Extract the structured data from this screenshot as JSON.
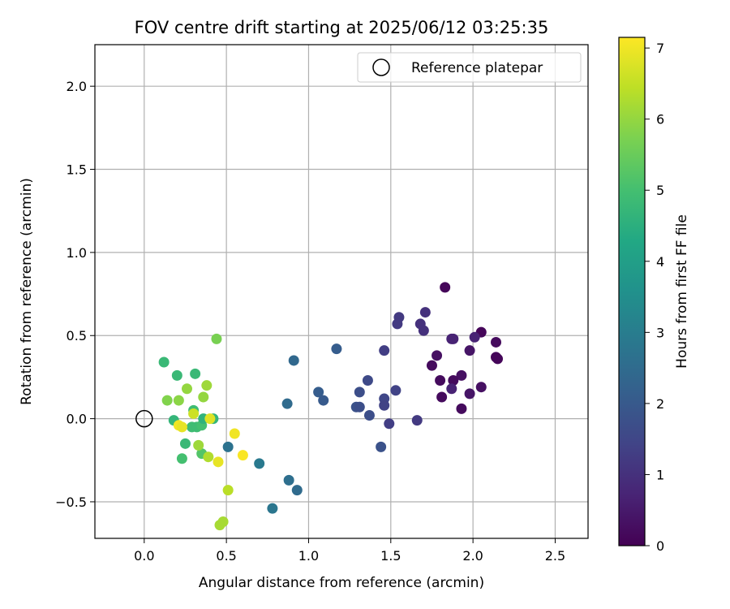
{
  "chart_data": {
    "type": "scatter",
    "title": "FOV centre drift starting at 2025/06/12 03:25:35",
    "xlabel": "Angular distance from reference (arcmin)",
    "ylabel": "Rotation from reference (arcmin)",
    "xlim": [
      -0.3,
      2.7
    ],
    "ylim": [
      -0.72,
      2.25
    ],
    "xticks": [
      0.0,
      0.5,
      1.0,
      1.5,
      2.0,
      2.5
    ],
    "xtick_labels": [
      "0.0",
      "0.5",
      "1.0",
      "1.5",
      "2.0",
      "2.5"
    ],
    "yticks": [
      -0.5,
      0.0,
      0.5,
      1.0,
      1.5,
      2.0
    ],
    "ytick_labels": [
      "−0.5",
      "0.0",
      "0.5",
      "1.0",
      "1.5",
      "2.0"
    ],
    "grid": true,
    "legend": {
      "placement": "top-right",
      "entries": [
        {
          "label": "Reference platepar",
          "marker": "open-circle"
        }
      ]
    },
    "reference_point": {
      "x": 0.0,
      "y": 0.0
    },
    "colorbar": {
      "label": "Hours from first FF file",
      "range": [
        0,
        7.15
      ],
      "ticks": [
        0,
        1,
        2,
        3,
        4,
        5,
        6,
        7
      ],
      "tick_labels": [
        "0",
        "1",
        "2",
        "3",
        "4",
        "5",
        "6",
        "7"
      ],
      "colormap": "viridis"
    },
    "points": [
      {
        "x": 1.83,
        "y": 0.79,
        "c": 0.1
      },
      {
        "x": 2.05,
        "y": 0.52,
        "c": 0.1
      },
      {
        "x": 2.14,
        "y": 0.46,
        "c": 0.2
      },
      {
        "x": 2.14,
        "y": 0.37,
        "c": 0.1
      },
      {
        "x": 2.15,
        "y": 0.36,
        "c": 0.1
      },
      {
        "x": 1.78,
        "y": 0.38,
        "c": 0.3
      },
      {
        "x": 1.75,
        "y": 0.32,
        "c": 0.2
      },
      {
        "x": 1.8,
        "y": 0.23,
        "c": 0.2
      },
      {
        "x": 1.81,
        "y": 0.13,
        "c": 0.2
      },
      {
        "x": 1.98,
        "y": 0.41,
        "c": 0.4
      },
      {
        "x": 1.93,
        "y": 0.26,
        "c": 0.3
      },
      {
        "x": 1.88,
        "y": 0.23,
        "c": 0.2
      },
      {
        "x": 1.98,
        "y": 0.15,
        "c": 0.4
      },
      {
        "x": 2.05,
        "y": 0.19,
        "c": 0.3
      },
      {
        "x": 1.93,
        "y": 0.06,
        "c": 0.2
      },
      {
        "x": 2.01,
        "y": 0.49,
        "c": 0.7
      },
      {
        "x": 1.87,
        "y": 0.48,
        "c": 0.7
      },
      {
        "x": 1.88,
        "y": 0.48,
        "c": 0.7
      },
      {
        "x": 1.87,
        "y": 0.18,
        "c": 0.7
      },
      {
        "x": 1.71,
        "y": 0.64,
        "c": 1.0
      },
      {
        "x": 1.68,
        "y": 0.57,
        "c": 1.0
      },
      {
        "x": 1.7,
        "y": 0.53,
        "c": 1.0
      },
      {
        "x": 1.55,
        "y": 0.61,
        "c": 1.2
      },
      {
        "x": 1.54,
        "y": 0.57,
        "c": 1.2
      },
      {
        "x": 1.46,
        "y": 0.41,
        "c": 1.3
      },
      {
        "x": 1.66,
        "y": -0.01,
        "c": 1.2
      },
      {
        "x": 1.53,
        "y": 0.17,
        "c": 1.4
      },
      {
        "x": 1.46,
        "y": 0.12,
        "c": 1.5
      },
      {
        "x": 1.46,
        "y": 0.08,
        "c": 1.4
      },
      {
        "x": 1.49,
        "y": -0.03,
        "c": 1.3
      },
      {
        "x": 1.36,
        "y": 0.23,
        "c": 1.6
      },
      {
        "x": 1.31,
        "y": 0.16,
        "c": 1.7
      },
      {
        "x": 1.29,
        "y": 0.07,
        "c": 1.8
      },
      {
        "x": 1.31,
        "y": 0.07,
        "c": 1.7
      },
      {
        "x": 1.37,
        "y": 0.02,
        "c": 1.7
      },
      {
        "x": 1.44,
        "y": -0.17,
        "c": 1.8
      },
      {
        "x": 1.17,
        "y": 0.42,
        "c": 2.1
      },
      {
        "x": 1.06,
        "y": 0.16,
        "c": 2.1
      },
      {
        "x": 1.09,
        "y": 0.11,
        "c": 2.0
      },
      {
        "x": 0.91,
        "y": 0.35,
        "c": 2.4
      },
      {
        "x": 0.87,
        "y": 0.09,
        "c": 2.5
      },
      {
        "x": 0.88,
        "y": -0.37,
        "c": 2.6
      },
      {
        "x": 0.93,
        "y": -0.43,
        "c": 2.5
      },
      {
        "x": 0.78,
        "y": -0.54,
        "c": 2.8
      },
      {
        "x": 0.7,
        "y": -0.27,
        "c": 2.9
      },
      {
        "x": 0.51,
        "y": -0.17,
        "c": 2.7
      },
      {
        "x": 0.12,
        "y": 0.34,
        "c": 4.8
      },
      {
        "x": 0.31,
        "y": 0.27,
        "c": 4.8
      },
      {
        "x": 0.2,
        "y": 0.26,
        "c": 4.8
      },
      {
        "x": 0.18,
        "y": -0.01,
        "c": 4.7
      },
      {
        "x": 0.29,
        "y": -0.05,
        "c": 4.9
      },
      {
        "x": 0.32,
        "y": -0.05,
        "c": 4.9
      },
      {
        "x": 0.35,
        "y": -0.04,
        "c": 5.0
      },
      {
        "x": 0.42,
        "y": 0.0,
        "c": 4.7
      },
      {
        "x": 0.36,
        "y": 0.0,
        "c": 4.6
      },
      {
        "x": 0.3,
        "y": 0.05,
        "c": 4.9
      },
      {
        "x": 0.25,
        "y": -0.15,
        "c": 4.8
      },
      {
        "x": 0.23,
        "y": -0.24,
        "c": 5.0
      },
      {
        "x": 0.35,
        "y": -0.21,
        "c": 5.2
      },
      {
        "x": 0.44,
        "y": 0.48,
        "c": 5.7
      },
      {
        "x": 0.14,
        "y": 0.11,
        "c": 5.8
      },
      {
        "x": 0.21,
        "y": 0.11,
        "c": 5.9
      },
      {
        "x": 0.26,
        "y": 0.18,
        "c": 6.0
      },
      {
        "x": 0.38,
        "y": 0.2,
        "c": 6.1
      },
      {
        "x": 0.36,
        "y": 0.13,
        "c": 6.0
      },
      {
        "x": 0.33,
        "y": -0.16,
        "c": 6.1
      },
      {
        "x": 0.39,
        "y": -0.23,
        "c": 6.3
      },
      {
        "x": 0.51,
        "y": -0.43,
        "c": 6.4
      },
      {
        "x": 0.48,
        "y": -0.62,
        "c": 6.2
      },
      {
        "x": 0.46,
        "y": -0.64,
        "c": 6.2
      },
      {
        "x": 0.3,
        "y": 0.03,
        "c": 6.6
      },
      {
        "x": 0.4,
        "y": 0.0,
        "c": 6.8
      },
      {
        "x": 0.21,
        "y": -0.04,
        "c": 7.0
      },
      {
        "x": 0.23,
        "y": -0.05,
        "c": 6.9
      },
      {
        "x": 0.45,
        "y": -0.26,
        "c": 6.9
      },
      {
        "x": 0.55,
        "y": -0.09,
        "c": 7.0
      },
      {
        "x": 0.6,
        "y": -0.22,
        "c": 7.1
      }
    ]
  }
}
